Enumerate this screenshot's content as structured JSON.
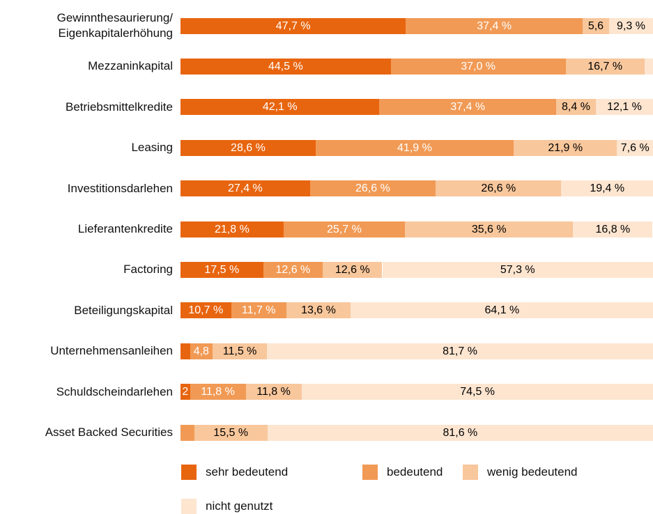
{
  "chart_data": {
    "type": "stacked-bar-horizontal",
    "categories": [
      "Gewinnthesaurierung/\nEigenkapitalerhöhung",
      "Mezzaninkapital",
      "Betriebsmittelkredite",
      "Leasing",
      "Investitionsdarlehen",
      "Lieferantenkredite",
      "Factoring",
      "Beteiligungskapital",
      "Unternehmensanleihen",
      "Schuldscheindarlehen",
      "Asset Backed Securities"
    ],
    "xlim": [
      0,
      100
    ],
    "series": [
      {
        "name": "sehr bedeutend",
        "color": "#e8650f",
        "label_color": "#ffffff",
        "values": [
          47.7,
          44.5,
          42.1,
          28.6,
          27.4,
          21.8,
          17.5,
          10.7,
          2.0,
          2,
          0
        ],
        "value_labels": [
          "47,7 %",
          "44,5 %",
          "42,1 %",
          "28,6 %",
          "27,4 %",
          "21,8 %",
          "17,5 %",
          "10,7 %",
          null,
          "2",
          null
        ]
      },
      {
        "name": "bedeutend",
        "color": "#f19a55",
        "label_color": "#ffffff",
        "values": [
          37.4,
          37.0,
          37.4,
          41.9,
          26.6,
          25.7,
          12.6,
          11.7,
          4.8,
          11.8,
          2.9
        ],
        "value_labels": [
          "37,4 %",
          "37,0 %",
          "37,4 %",
          "41,9 %",
          "26,6 %",
          "25,7 %",
          "12,6 %",
          "11,7 %",
          "4,8",
          "11,8 %",
          null
        ]
      },
      {
        "name": "wenig bedeutend",
        "color": "#f8c79c",
        "label_color": "#000000",
        "values": [
          5.6,
          16.7,
          8.4,
          21.9,
          26.6,
          35.6,
          12.6,
          13.6,
          11.5,
          11.8,
          15.5
        ],
        "value_labels": [
          "5,6",
          "16,7 %",
          "8,4 %",
          "21,9 %",
          "26,6 %",
          "35,6 %",
          "12,6 %",
          "13,6 %",
          "11,5 %",
          "11,8 %",
          "15,5 %"
        ]
      },
      {
        "name": "nicht genutzt",
        "color": "#fde5d0",
        "label_color": "#000000",
        "values": [
          9.3,
          1.8,
          12.1,
          7.6,
          19.4,
          16.8,
          57.3,
          64.1,
          81.7,
          74.5,
          81.6
        ],
        "value_labels": [
          "9,3 %",
          null,
          "12,1 %",
          "7,6 %",
          "19,4 %",
          "16,8 %",
          "57,3 %",
          "64,1 %",
          "81,7 %",
          "74,5 %",
          "81,6 %"
        ]
      }
    ]
  }
}
